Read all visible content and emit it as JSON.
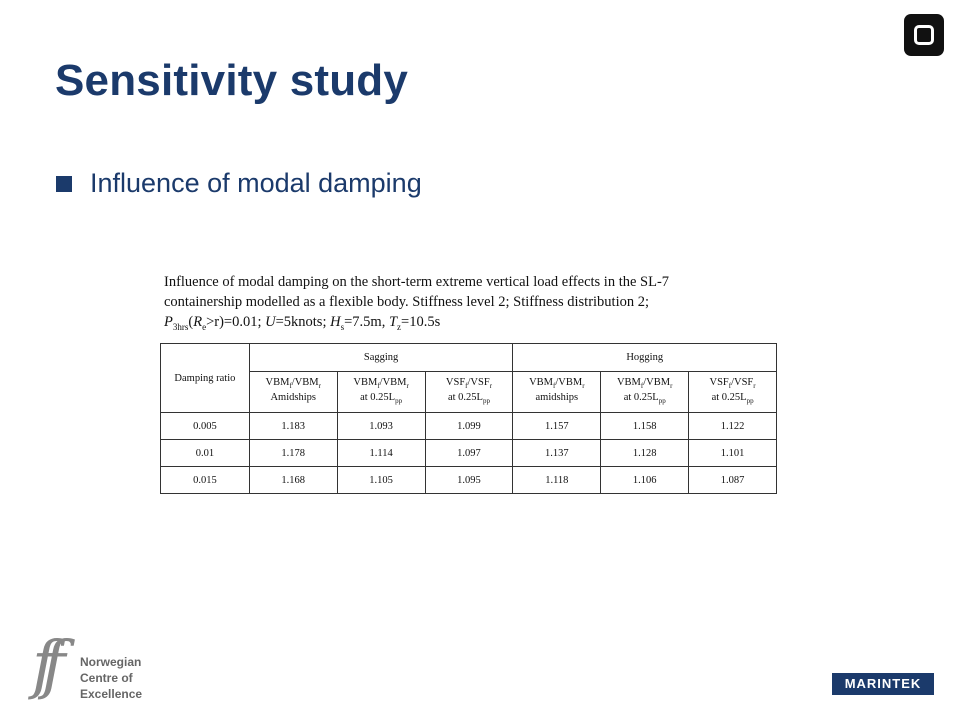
{
  "slide": {
    "title": "Sensitivity study",
    "bullet": "Influence of modal damping"
  },
  "caption": {
    "line1": "Influence of modal damping on the short-term extreme vertical load effects in the SL-7",
    "line2": "containership modelled as a flexible body. Stiffness level 2; Stiffness distribution 2;",
    "p": "P",
    "p_sub": "3hrs",
    "r_open": "(",
    "r_e": "R",
    "r_e_sub": "e",
    "r_cond": ">r)=0.01; ",
    "u_sym": "U",
    "u_val": "=5knots; ",
    "h_sym": "H",
    "h_sub": "s",
    "h_val": "=7.5m, ",
    "t_sym": "T",
    "t_sub": "z",
    "t_val": "=10.5s"
  },
  "table": {
    "damping_header": "Damping ratio",
    "group_sagging": "Sagging",
    "group_hogging": "Hogging",
    "col_headers": [
      {
        "a": "VBM",
        "a_sub": "f",
        "b": "/VBM",
        "b_sub": "r",
        "loc": "Amidships",
        "loc_sub": ""
      },
      {
        "a": "VBM",
        "a_sub": "f",
        "b": "/VBM",
        "b_sub": "r",
        "loc": "at 0.25L",
        "loc_sub": "pp"
      },
      {
        "a": "VSF",
        "a_sub": "f",
        "b": "/VSF",
        "b_sub": "r",
        "loc": "at 0.25L",
        "loc_sub": "pp"
      },
      {
        "a": "VBM",
        "a_sub": "f",
        "b": "/VBM",
        "b_sub": "r",
        "loc": "amidships",
        "loc_sub": ""
      },
      {
        "a": "VBM",
        "a_sub": "f",
        "b": "/VBM",
        "b_sub": "r",
        "loc": "at 0.25L",
        "loc_sub": "pp"
      },
      {
        "a": "VSF",
        "a_sub": "f",
        "b": "/VSF",
        "b_sub": "r",
        "loc": "at 0.25L",
        "loc_sub": "pp"
      }
    ],
    "rows": [
      [
        "0.005",
        "1.183",
        "1.093",
        "1.099",
        "1.157",
        "1.158",
        "1.122"
      ],
      [
        "0.01",
        "1.178",
        "1.114",
        "1.097",
        "1.137",
        "1.128",
        "1.101"
      ],
      [
        "0.015",
        "1.168",
        "1.105",
        "1.095",
        "1.118",
        "1.106",
        "1.087"
      ]
    ]
  },
  "logos": {
    "nce_mark": "ff",
    "nce_line1": "Norwegian",
    "nce_line2": "Centre of",
    "nce_line3": "Excellence",
    "marintek": "MARINTEK"
  },
  "colors": {
    "primary": "#1b3a6b",
    "logo_gray": "#666666"
  }
}
